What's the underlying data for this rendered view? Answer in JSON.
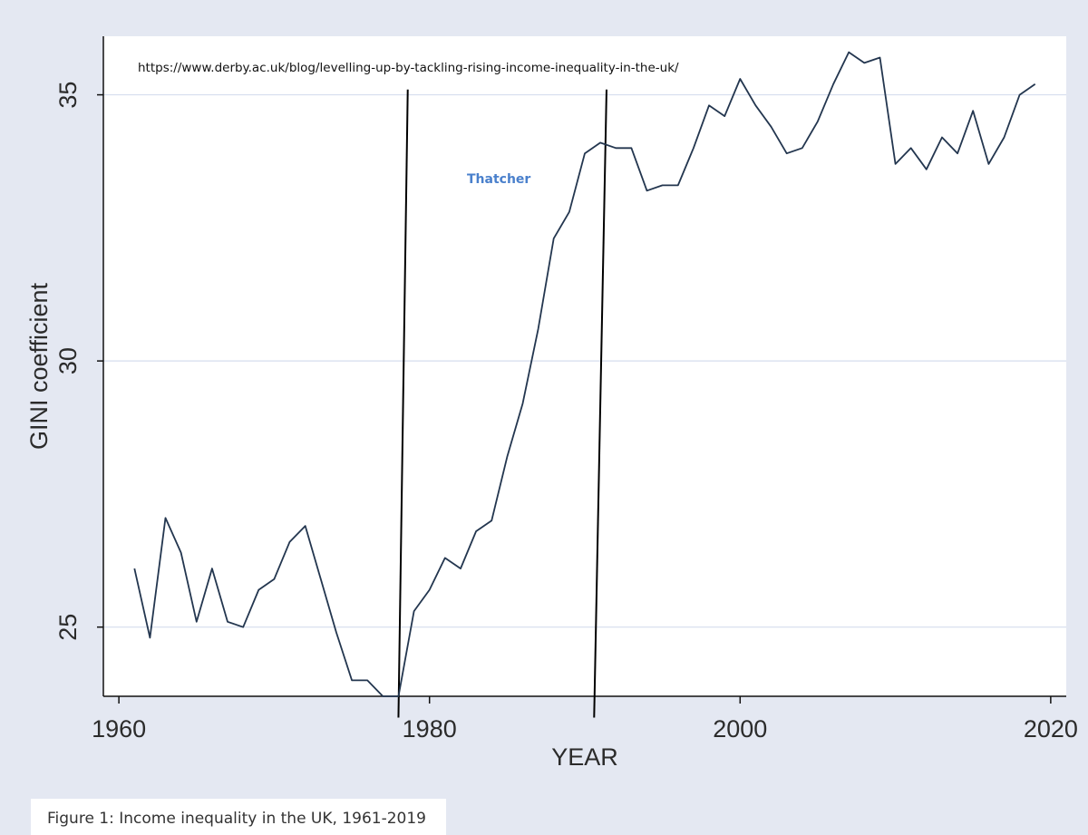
{
  "caption": "Figure 1: Income inequality in the UK, 1961-2019",
  "chart_data": {
    "type": "line",
    "xlabel": "YEAR",
    "ylabel": "GINI coefficient",
    "xlim": [
      1959,
      2021
    ],
    "ylim": [
      23.7,
      36.1
    ],
    "xticks": [
      1960,
      1980,
      2000,
      2020
    ],
    "yticks": [
      25,
      30,
      35
    ],
    "grid": true,
    "annotations": {
      "url": "https://www.derby.ac.uk/blog/levelling-up-by-tackling-rising-income-inequality-in-the-uk/",
      "label": "Thatcher"
    },
    "vertical_lines": [
      {
        "x1": 1978.0,
        "y1": 23.3,
        "x2": 1978.6,
        "y2": 35.1
      },
      {
        "x1": 1990.6,
        "y1": 23.3,
        "x2": 1991.4,
        "y2": 35.1
      }
    ],
    "series": [
      {
        "x": [
          1961,
          1962,
          1963,
          1964,
          1965,
          1966,
          1967,
          1968,
          1969,
          1970,
          1971,
          1972,
          1973,
          1974,
          1975,
          1976,
          1977,
          1978,
          1979,
          1980,
          1981,
          1982,
          1983,
          1984,
          1985,
          1986,
          1987,
          1988,
          1989,
          1990,
          1991,
          1992,
          1993,
          1994,
          1995,
          1996,
          1997,
          1998,
          1999,
          2000,
          2001,
          2002,
          2003,
          2004,
          2005,
          2006,
          2007,
          2008,
          2009,
          2010,
          2011,
          2012,
          2013,
          2014,
          2015,
          2016,
          2017,
          2018,
          2019
        ],
        "values": [
          26.1,
          24.8,
          27.05,
          26.4,
          25.1,
          26.1,
          25.1,
          25.0,
          25.7,
          25.9,
          26.6,
          26.9,
          25.9,
          24.9,
          24.0,
          24.0,
          23.7,
          23.7,
          25.3,
          25.7,
          26.3,
          26.1,
          26.8,
          27.0,
          28.2,
          29.2,
          30.6,
          32.3,
          32.8,
          33.9,
          34.1,
          34.0,
          34.0,
          33.2,
          33.3,
          33.3,
          34.0,
          34.8,
          34.6,
          35.3,
          34.8,
          34.4,
          33.9,
          34.0,
          34.5,
          35.2,
          35.8,
          35.6,
          35.7,
          33.7,
          34.0,
          33.6,
          34.2,
          33.9,
          34.7,
          33.7,
          34.2,
          35.0,
          35.2
        ]
      }
    ]
  }
}
